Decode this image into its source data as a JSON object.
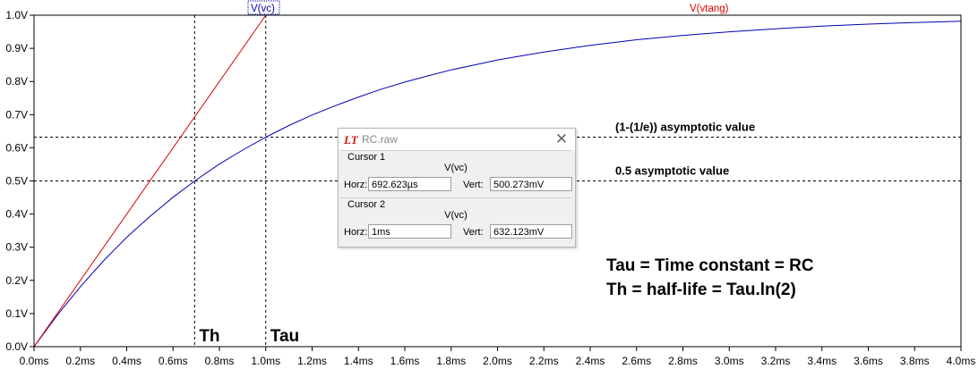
{
  "window": {
    "title": "RC.raw"
  },
  "cursor_dialog": {
    "cursor1": {
      "label": "Cursor 1",
      "trace": "V(vc)",
      "horz_label": "Horz:",
      "horz_value": "692.623µs",
      "vert_label": "Vert:",
      "vert_value": "500.273mV"
    },
    "cursor2": {
      "label": "Cursor 2",
      "trace": "V(vc)",
      "horz_label": "Horz:",
      "horz_value": "1ms",
      "vert_label": "Vert:",
      "vert_value": "632.123mV"
    }
  },
  "colors": {
    "vc": "#0000b4",
    "vtang": "#dd0000",
    "frame": "#000000"
  },
  "chart_data": {
    "type": "line",
    "xlim": [
      0,
      4.0
    ],
    "ylim": [
      0,
      1.0
    ],
    "x_unit": "ms",
    "y_unit": "V",
    "x_ticks": [
      0.0,
      0.2,
      0.4,
      0.6,
      0.8,
      1.0,
      1.2,
      1.4,
      1.6,
      1.8,
      2.0,
      2.2,
      2.4,
      2.6,
      2.8,
      3.0,
      3.2,
      3.4,
      3.6,
      3.8,
      4.0
    ],
    "x_tick_labels": [
      "0.0ms",
      "0.2ms",
      "0.4ms",
      "0.6ms",
      "0.8ms",
      "1.0ms",
      "1.2ms",
      "1.4ms",
      "1.6ms",
      "1.8ms",
      "2.0ms",
      "2.2ms",
      "2.4ms",
      "2.6ms",
      "2.8ms",
      "3.0ms",
      "3.2ms",
      "3.4ms",
      "3.6ms",
      "3.8ms",
      "4.0ms"
    ],
    "y_ticks": [
      0.0,
      0.1,
      0.2,
      0.3,
      0.4,
      0.5,
      0.6,
      0.7,
      0.8,
      0.9,
      1.0
    ],
    "y_tick_labels": [
      "0.0V",
      "0.1V",
      "0.2V",
      "0.3V",
      "0.4V",
      "0.5V",
      "0.6V",
      "0.7V",
      "0.8V",
      "0.9V",
      "1.0V"
    ],
    "grid": false,
    "series": [
      {
        "name": "V(vc)",
        "color": "#0000b4",
        "x": [
          0.0,
          0.1,
          0.2,
          0.3,
          0.4,
          0.5,
          0.6,
          0.7,
          0.8,
          0.9,
          1.0,
          1.1,
          1.2,
          1.3,
          1.4,
          1.5,
          1.6,
          1.7,
          1.8,
          1.9,
          2.0,
          2.2,
          2.4,
          2.6,
          2.8,
          3.0,
          3.2,
          3.4,
          3.6,
          3.8,
          4.0
        ],
        "y": [
          0.0,
          0.095,
          0.181,
          0.259,
          0.33,
          0.393,
          0.451,
          0.503,
          0.551,
          0.593,
          0.632,
          0.667,
          0.699,
          0.727,
          0.753,
          0.777,
          0.798,
          0.817,
          0.835,
          0.85,
          0.865,
          0.889,
          0.909,
          0.926,
          0.939,
          0.95,
          0.959,
          0.967,
          0.973,
          0.978,
          0.982
        ]
      },
      {
        "name": "V(vtang)",
        "color": "#dd0000",
        "x": [
          0.0,
          1.0,
          4.0
        ],
        "y": [
          0.0,
          1.0,
          1.0
        ]
      }
    ],
    "vertical_markers": [
      {
        "x": 0.693,
        "label": "Th"
      },
      {
        "x": 1.0,
        "label": "Tau"
      }
    ],
    "horizontal_markers": [
      {
        "y": 0.632,
        "label": "(1-(1/e)) asymptotic value"
      },
      {
        "y": 0.5,
        "label": "0.5 asymptotic value"
      }
    ],
    "annotations": [
      "Tau = Time constant = RC",
      "Th = half-life = Tau.ln(2)"
    ]
  }
}
